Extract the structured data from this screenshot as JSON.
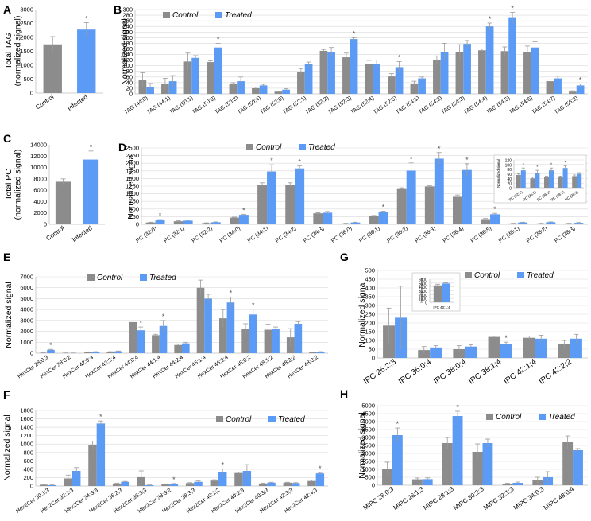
{
  "figure": {
    "colors": {
      "control": "#8c8c8c",
      "treated": "#5b9bf5",
      "error": "#9a9a9a",
      "axis": "#bfbfbf",
      "grid": "#d9d9d9"
    }
  },
  "chart_data": [
    {
      "panel": "A",
      "type": "bar",
      "mode": "single",
      "ylabel": "Total TAG (normalized signal)",
      "ylabel_lines": [
        "Total TAG",
        "(normalized signal)"
      ],
      "categories": [
        "Control",
        "Infected"
      ],
      "values": [
        1750,
        2280
      ],
      "errors": [
        280,
        250
      ],
      "stars": [
        false,
        true
      ],
      "ylim": [
        0,
        3000
      ],
      "yticks": [
        0,
        500,
        1000,
        1500,
        2000,
        2500,
        3000
      ],
      "grid": false,
      "rotate_labels": true
    },
    {
      "panel": "B",
      "type": "bar",
      "mode": "grouped",
      "ylabel": "Normalized signal",
      "legend": [
        "Control",
        "Treated"
      ],
      "categories": [
        "TAG (44:0)",
        "TAG (44:1)",
        "TAG (50:1)",
        "TAG (50:2)",
        "TAG (50:3)",
        "TAG (50:4)",
        "TAG (52:0)",
        "TAG (52:1)",
        "TAG (52:2)",
        "TAG (52:3)",
        "TAG (52:4)",
        "TAG (52:5)",
        "TAG (54:1)",
        "TAG (54:2)",
        "TAG (54:3)",
        "TAG (54:4)",
        "TAG (54:5)",
        "TAG (54:6)",
        "TAG (54:7)",
        "TAG (56:2)"
      ],
      "series": [
        {
          "name": "Control",
          "values": [
            50,
            35,
            115,
            113,
            35,
            20,
            8,
            78,
            153,
            130,
            107,
            62,
            37,
            120,
            150,
            155,
            152,
            150,
            45,
            8
          ],
          "errors": [
            25,
            20,
            30,
            5,
            5,
            4,
            2,
            12,
            5,
            15,
            12,
            10,
            8,
            15,
            25,
            5,
            15,
            20,
            5,
            3
          ]
        },
        {
          "name": "Treated",
          "values": [
            25,
            45,
            128,
            165,
            45,
            30,
            15,
            105,
            150,
            195,
            105,
            95,
            55,
            150,
            178,
            240,
            270,
            165,
            55,
            30
          ],
          "errors": [
            12,
            20,
            8,
            15,
            15,
            4,
            3,
            8,
            15,
            5,
            15,
            20,
            5,
            30,
            12,
            12,
            20,
            20,
            8,
            5
          ]
        }
      ],
      "stars": [
        false,
        false,
        false,
        true,
        false,
        false,
        false,
        false,
        false,
        true,
        false,
        true,
        false,
        false,
        false,
        true,
        true,
        false,
        false,
        true
      ],
      "ylim": [
        0,
        300
      ],
      "yticks": [
        0,
        20,
        40,
        60,
        80,
        100,
        120,
        140,
        160,
        180,
        200,
        220,
        240,
        260,
        280,
        300
      ],
      "grid": true,
      "rotate_labels": true
    },
    {
      "panel": "C",
      "type": "bar",
      "mode": "single",
      "ylabel": "Total PC (normalized signal)",
      "ylabel_lines": [
        "Total PC",
        "(normalized signal)"
      ],
      "categories": [
        "Control",
        "Infected"
      ],
      "values": [
        7500,
        11400
      ],
      "errors": [
        500,
        1500
      ],
      "stars": [
        false,
        true
      ],
      "ylim": [
        0,
        14000
      ],
      "yticks": [
        0,
        2000,
        4000,
        6000,
        8000,
        10000,
        12000,
        14000
      ],
      "grid": false,
      "rotate_labels": true
    },
    {
      "panel": "D",
      "type": "bar",
      "mode": "grouped",
      "ylabel": "Normalized signal",
      "legend": [
        "Control",
        "Treated"
      ],
      "categories": [
        "PC (32:0)",
        "PC (32:1)",
        "PC (32:2)",
        "PC (34:0)",
        "PC (34:1)",
        "PC (34:2)",
        "PC (34:3)",
        "PC (36:0)",
        "PC (36:1)",
        "PC (36:2)",
        "PC (36:3)",
        "PC (36:4)",
        "PC (36:5)",
        "PC (38:1)",
        "PC (38:2)",
        "PC (38:3)"
      ],
      "series": [
        {
          "name": "Control",
          "values": [
            60,
            100,
            40,
            220,
            1300,
            1300,
            360,
            30,
            270,
            1180,
            1240,
            900,
            170,
            30,
            30,
            30
          ],
          "errors": [
            10,
            20,
            10,
            15,
            60,
            60,
            20,
            5,
            20,
            15,
            20,
            60,
            20,
            5,
            5,
            5
          ]
        },
        {
          "name": "Treated",
          "values": [
            140,
            120,
            70,
            310,
            1730,
            1830,
            380,
            60,
            400,
            1760,
            2150,
            1780,
            330,
            60,
            70,
            50
          ],
          "errors": [
            15,
            15,
            10,
            20,
            220,
            80,
            40,
            10,
            30,
            250,
            200,
            200,
            30,
            10,
            10,
            10
          ]
        }
      ],
      "stars": [
        true,
        false,
        false,
        true,
        true,
        true,
        false,
        false,
        true,
        true,
        true,
        true,
        true,
        false,
        false,
        false
      ],
      "ylim": [
        0,
        2500
      ],
      "yticks": [
        0,
        250,
        500,
        750,
        1000,
        1250,
        1500,
        1750,
        2000,
        2250,
        2500
      ],
      "grid": true,
      "rotate_labels": true
    },
    {
      "panel": "D-inset",
      "type": "bar",
      "mode": "grouped",
      "ylabel": "Normalized signal",
      "categories": [
        "PC (32:2)",
        "PC (36:0)",
        "PC (36:1)",
        "PC (38:2)",
        "PC (38:3)"
      ],
      "series": [
        {
          "name": "Control",
          "values": [
            55,
            40,
            45,
            45,
            50
          ],
          "errors": [
            5,
            5,
            5,
            5,
            5
          ]
        },
        {
          "name": "Treated",
          "values": [
            75,
            65,
            75,
            85,
            60
          ],
          "errors": [
            10,
            10,
            10,
            10,
            5
          ]
        }
      ],
      "stars": [
        true,
        true,
        true,
        true,
        false
      ],
      "ylim": [
        0,
        120
      ],
      "yticks": [
        0,
        20,
        40,
        60,
        80,
        100,
        120
      ],
      "grid": true,
      "rotate_labels": true
    },
    {
      "panel": "E",
      "type": "bar",
      "mode": "grouped",
      "ylabel": "Normalized signal",
      "legend": [
        "Control",
        "Treated"
      ],
      "categories": [
        "HexCer 28:0;3",
        "HexCer 38:3;2",
        "HexCer 42:0;4",
        "HexCer 42:2;4",
        "HexCer 44:0;4",
        "HexCer 44:1;4",
        "HexCer 44:2;4",
        "HexCer 46:1;4",
        "HexCer 46:2;4",
        "HexCer 48:0;2",
        "HexCer 48:1;2",
        "HexCer 48:2;2",
        "HexCer 48:3;2"
      ],
      "series": [
        {
          "name": "Control",
          "values": [
            30,
            20,
            100,
            120,
            2850,
            1650,
            750,
            6000,
            3200,
            2200,
            2150,
            1450,
            80
          ],
          "errors": [
            5,
            5,
            20,
            20,
            100,
            80,
            100,
            700,
            800,
            500,
            500,
            800,
            20
          ]
        },
        {
          "name": "Treated",
          "values": [
            300,
            15,
            120,
            170,
            2100,
            2500,
            900,
            5000,
            4650,
            3550,
            2200,
            2700,
            120
          ],
          "errors": [
            50,
            5,
            20,
            30,
            300,
            500,
            100,
            400,
            500,
            500,
            200,
            200,
            20
          ]
        }
      ],
      "stars": [
        true,
        false,
        false,
        false,
        true,
        true,
        false,
        false,
        true,
        true,
        false,
        false,
        false
      ],
      "ylim": [
        0,
        7000
      ],
      "yticks": [
        0,
        1000,
        2000,
        3000,
        4000,
        5000,
        6000,
        7000
      ],
      "grid": true,
      "rotate_labels": true
    },
    {
      "panel": "F",
      "type": "bar",
      "mode": "grouped",
      "ylabel": "Normalized signal",
      "legend": [
        "Control",
        "Treated"
      ],
      "categories": [
        "Hex2Cer 30:1;3",
        "Hex2Cer 32:1;3",
        "Hex2Cer 34:3;3",
        "Hex2Cer 36:2;3",
        "Hex2Cer 36:3;3",
        "Hex2Cer 38:3;2",
        "Hex2Cer 38:3;3",
        "Hex2Cer 40:1;2",
        "Hex2Cer 40:2;3",
        "Hex2Cer 40:3;3",
        "Hex2Cer 42:3;3",
        "Hex2Cer 42:4;3"
      ],
      "series": [
        {
          "name": "Control",
          "values": [
            30,
            180,
            970,
            60,
            210,
            40,
            70,
            130,
            310,
            60,
            80,
            120
          ],
          "errors": [
            10,
            80,
            100,
            10,
            150,
            10,
            10,
            20,
            20,
            10,
            10,
            20
          ]
        },
        {
          "name": "Treated",
          "values": [
            20,
            360,
            1490,
            100,
            20,
            50,
            100,
            330,
            360,
            80,
            70,
            300
          ],
          "errors": [
            5,
            80,
            60,
            10,
            5,
            10,
            20,
            80,
            150,
            10,
            10,
            20
          ]
        }
      ],
      "stars": [
        false,
        false,
        true,
        false,
        false,
        true,
        false,
        true,
        false,
        false,
        false,
        true
      ],
      "ylim": [
        0,
        1800
      ],
      "yticks": [
        0,
        200,
        400,
        600,
        800,
        1000,
        1200,
        1400,
        1600,
        1800
      ],
      "grid": true,
      "rotate_labels": true
    },
    {
      "panel": "G",
      "type": "bar",
      "mode": "grouped",
      "ylabel": "Normalized signal",
      "legend": [
        "Control",
        "Treated"
      ],
      "categories": [
        "IPC 26:2;3",
        "IPC 36:0;4",
        "IPC 38:0;4",
        "IPC 38:1;4",
        "IPC 42:1;4",
        "IPC 42:2;2"
      ],
      "series": [
        {
          "name": "Control",
          "values": [
            185,
            45,
            50,
            120,
            115,
            80
          ],
          "errors": [
            100,
            20,
            20,
            5,
            10,
            20
          ]
        },
        {
          "name": "Treated",
          "values": [
            230,
            60,
            65,
            80,
            110,
            110
          ],
          "errors": [
            180,
            10,
            10,
            10,
            20,
            25
          ]
        }
      ],
      "stars": [
        false,
        false,
        false,
        true,
        false,
        false
      ],
      "ylim": [
        0,
        500
      ],
      "yticks": [
        0,
        50,
        100,
        150,
        200,
        250,
        300,
        350,
        400,
        450,
        500
      ],
      "grid": true,
      "rotate_labels": true
    },
    {
      "panel": "G-inset",
      "type": "bar",
      "mode": "grouped",
      "ylabel": "Normalized signal",
      "categories": [
        "IPC 40:1;4"
      ],
      "series": [
        {
          "name": "Control",
          "values": [
            4400
          ],
          "errors": [
            300
          ]
        },
        {
          "name": "Treated",
          "values": [
            4900
          ],
          "errors": [
            200
          ]
        }
      ],
      "stars": [
        false
      ],
      "ylim": [
        0,
        6000
      ],
      "yticks": [
        0,
        1000,
        2000,
        3000,
        4000,
        5000,
        6000
      ],
      "grid": true,
      "rotate_labels": false
    },
    {
      "panel": "H",
      "type": "bar",
      "mode": "grouped",
      "ylabel": "Normalized signal",
      "legend": [
        "Control",
        "Treated"
      ],
      "categories": [
        "MIPC 26:0;3",
        "MIPC 26:1;3",
        "MIPC 28:1;3",
        "MIPC 30:2;3",
        "MIPC 32:1;3",
        "MIPC 34:0;3",
        "MIPC 48:0;4"
      ],
      "series": [
        {
          "name": "Control",
          "values": [
            1050,
            370,
            2650,
            2100,
            100,
            300,
            2700
          ],
          "errors": [
            400,
            80,
            350,
            500,
            30,
            200,
            400
          ]
        },
        {
          "name": "Treated",
          "values": [
            3150,
            380,
            4350,
            2650,
            150,
            500,
            2200
          ],
          "errors": [
            450,
            80,
            300,
            250,
            50,
            350,
            100
          ]
        }
      ],
      "stars": [
        true,
        false,
        true,
        false,
        false,
        false,
        false
      ],
      "ylim": [
        0,
        5000
      ],
      "yticks": [
        0,
        500,
        1000,
        1500,
        2000,
        2500,
        3000,
        3500,
        4000,
        4500,
        5000
      ],
      "grid": true,
      "rotate_labels": true
    }
  ]
}
